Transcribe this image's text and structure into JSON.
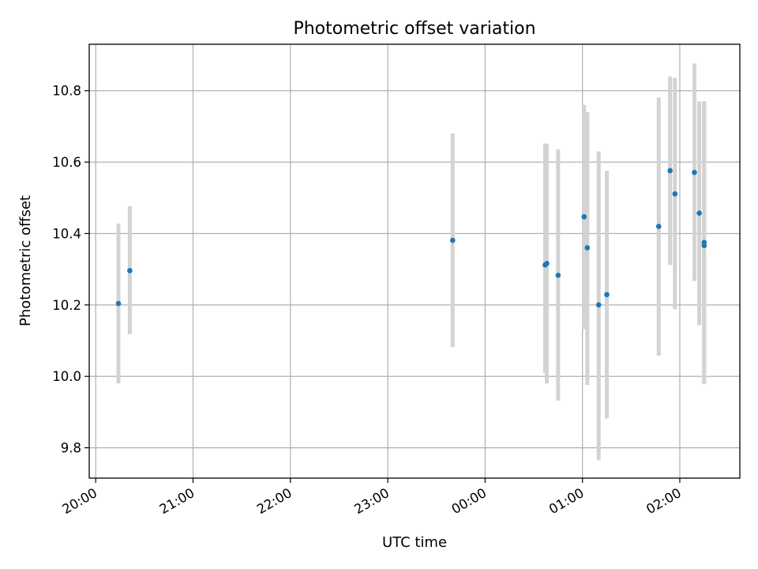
{
  "chart_data": {
    "type": "scatter",
    "title": "Photometric offset variation",
    "xlabel": "UTC time",
    "ylabel": "Photometric offset",
    "grid": true,
    "x_is_time": true,
    "xlim": [
      "19:56",
      "02:37"
    ],
    "ylim": [
      9.715,
      10.93
    ],
    "x_ticks": [
      {
        "label": "20:00",
        "t": "20:00"
      },
      {
        "label": "21:00",
        "t": "21:00"
      },
      {
        "label": "22:00",
        "t": "22:00"
      },
      {
        "label": "23:00",
        "t": "23:00"
      },
      {
        "label": "00:00",
        "t": "00:00"
      },
      {
        "label": "01:00",
        "t": "01:00"
      },
      {
        "label": "02:00",
        "t": "02:00"
      }
    ],
    "y_ticks": [
      9.8,
      10.0,
      10.2,
      10.4,
      10.6,
      10.8
    ],
    "point_color": "#1f77b4",
    "errorbar_color": "#d3d3d3",
    "points": [
      {
        "t": "20:14",
        "y": 10.204,
        "lo": 9.98,
        "hi": 10.428
      },
      {
        "t": "20:21",
        "y": 10.296,
        "lo": 10.118,
        "hi": 10.476
      },
      {
        "t": "23:40",
        "y": 10.381,
        "lo": 10.082,
        "hi": 10.68
      },
      {
        "t": "00:37",
        "y": 10.312,
        "lo": 10.01,
        "hi": 10.652
      },
      {
        "t": "00:38",
        "y": 10.316,
        "lo": 9.98,
        "hi": 10.652
      },
      {
        "t": "00:45",
        "y": 10.283,
        "lo": 9.932,
        "hi": 10.635
      },
      {
        "t": "01:01",
        "y": 10.447,
        "lo": 10.132,
        "hi": 10.76
      },
      {
        "t": "01:03",
        "y": 10.36,
        "lo": 9.976,
        "hi": 10.74
      },
      {
        "t": "01:10",
        "y": 10.2,
        "lo": 9.765,
        "hi": 10.63
      },
      {
        "t": "01:15",
        "y": 10.229,
        "lo": 9.882,
        "hi": 10.576
      },
      {
        "t": "01:47",
        "y": 10.42,
        "lo": 10.058,
        "hi": 10.781
      },
      {
        "t": "01:54",
        "y": 10.576,
        "lo": 10.312,
        "hi": 10.84
      },
      {
        "t": "01:57",
        "y": 10.511,
        "lo": 10.188,
        "hi": 10.836
      },
      {
        "t": "02:09",
        "y": 10.571,
        "lo": 10.267,
        "hi": 10.876
      },
      {
        "t": "02:12",
        "y": 10.457,
        "lo": 10.143,
        "hi": 10.77
      },
      {
        "t": "02:15",
        "y": 10.375,
        "lo": 9.978,
        "hi": 10.77
      },
      {
        "t": "02:15",
        "y": 10.366,
        "lo": 9.978,
        "hi": 10.77
      }
    ]
  }
}
